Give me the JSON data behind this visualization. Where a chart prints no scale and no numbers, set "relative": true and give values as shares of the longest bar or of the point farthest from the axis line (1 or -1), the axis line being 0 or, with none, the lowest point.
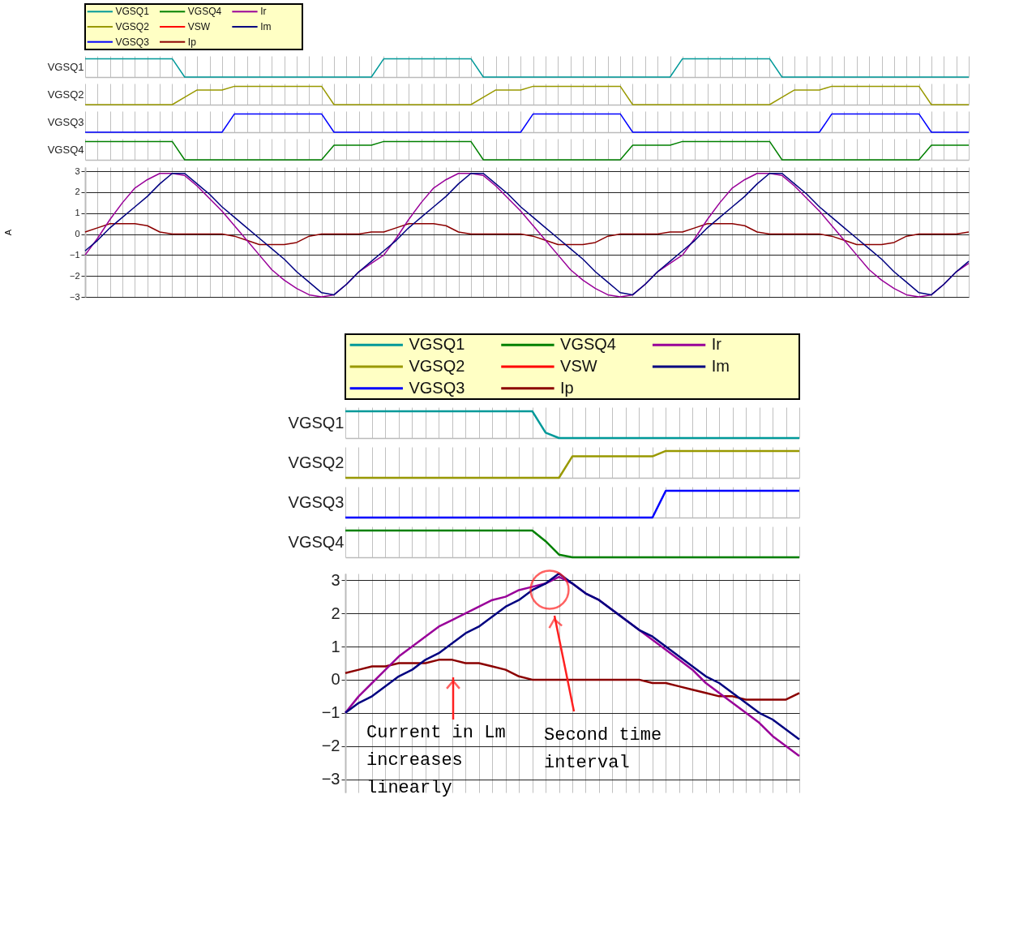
{
  "chart_data": [
    {
      "type": "line",
      "ylabel": "VGSQ1",
      "relative": true,
      "grid": "x",
      "categories": [
        null,
        null,
        null,
        null,
        null,
        null,
        null,
        null,
        null,
        null,
        null,
        null,
        null,
        null,
        null,
        null,
        null,
        null,
        null,
        null,
        null,
        null,
        null,
        null,
        null,
        null,
        null,
        null,
        null,
        null,
        null,
        null,
        null,
        null,
        null,
        null,
        null,
        null,
        null,
        null,
        null,
        null,
        null,
        null,
        null,
        null,
        null,
        null,
        null,
        null,
        null,
        null,
        null,
        null,
        null,
        null,
        null,
        null,
        null,
        null,
        null,
        null,
        null,
        null,
        null,
        null,
        null,
        null,
        null,
        null,
        null,
        null
      ],
      "series": [
        {
          "name": "VGSQ1",
          "color": "#009999",
          "values": [
            1,
            1,
            1,
            1,
            1,
            1,
            1,
            1,
            0,
            0,
            0,
            0,
            0,
            0,
            0,
            0,
            0,
            0,
            0,
            0,
            0,
            0,
            0,
            0,
            1,
            1,
            1,
            1,
            1,
            1,
            1,
            1,
            0,
            0,
            0,
            0,
            0,
            0,
            0,
            0,
            0,
            0,
            0,
            0,
            0,
            0,
            0,
            0,
            1,
            1,
            1,
            1,
            1,
            1,
            1,
            1,
            0,
            0,
            0,
            0,
            0,
            0,
            0,
            0,
            0,
            0,
            0,
            0,
            0,
            0,
            0,
            0
          ]
        }
      ]
    },
    {
      "type": "line",
      "ylabel": "VGSQ2",
      "relative": true,
      "grid": "x",
      "categories": [
        null,
        null,
        null,
        null,
        null,
        null,
        null,
        null,
        null,
        null,
        null,
        null,
        null,
        null,
        null,
        null,
        null,
        null,
        null,
        null,
        null,
        null,
        null,
        null,
        null,
        null,
        null,
        null,
        null,
        null,
        null,
        null,
        null,
        null,
        null,
        null,
        null,
        null,
        null,
        null,
        null,
        null,
        null,
        null,
        null,
        null,
        null,
        null,
        null,
        null,
        null,
        null,
        null,
        null,
        null,
        null,
        null,
        null,
        null,
        null,
        null,
        null,
        null,
        null,
        null,
        null,
        null,
        null,
        null,
        null,
        null,
        null
      ],
      "series": [
        {
          "name": "VGSQ2",
          "color": "#999900",
          "values": [
            0,
            0,
            0,
            0,
            0,
            0,
            0,
            0,
            0.4,
            0.8,
            0.8,
            0.8,
            1,
            1,
            1,
            1,
            1,
            1,
            1,
            1,
            0,
            0,
            0,
            0,
            0,
            0,
            0,
            0,
            0,
            0,
            0,
            0,
            0.4,
            0.8,
            0.8,
            0.8,
            1,
            1,
            1,
            1,
            1,
            1,
            1,
            1,
            0,
            0,
            0,
            0,
            0,
            0,
            0,
            0,
            0,
            0,
            0,
            0,
            0.4,
            0.8,
            0.8,
            0.8,
            1,
            1,
            1,
            1,
            1,
            1,
            1,
            1,
            0,
            0,
            0,
            0
          ]
        }
      ]
    },
    {
      "type": "line",
      "ylabel": "VGSQ3",
      "relative": true,
      "grid": "x",
      "categories": [
        null,
        null,
        null,
        null,
        null,
        null,
        null,
        null,
        null,
        null,
        null,
        null,
        null,
        null,
        null,
        null,
        null,
        null,
        null,
        null,
        null,
        null,
        null,
        null,
        null,
        null,
        null,
        null,
        null,
        null,
        null,
        null,
        null,
        null,
        null,
        null,
        null,
        null,
        null,
        null,
        null,
        null,
        null,
        null,
        null,
        null,
        null,
        null,
        null,
        null,
        null,
        null,
        null,
        null,
        null,
        null,
        null,
        null,
        null,
        null,
        null,
        null,
        null,
        null,
        null,
        null,
        null,
        null,
        null,
        null,
        null,
        null
      ],
      "series": [
        {
          "name": "VGSQ3",
          "color": "#0000ff",
          "values": [
            0,
            0,
            0,
            0,
            0,
            0,
            0,
            0,
            0,
            0,
            0,
            0,
            1,
            1,
            1,
            1,
            1,
            1,
            1,
            1,
            0,
            0,
            0,
            0,
            0,
            0,
            0,
            0,
            0,
            0,
            0,
            0,
            0,
            0,
            0,
            0,
            1,
            1,
            1,
            1,
            1,
            1,
            1,
            1,
            0,
            0,
            0,
            0,
            0,
            0,
            0,
            0,
            0,
            0,
            0,
            0,
            0,
            0,
            0,
            0,
            1,
            1,
            1,
            1,
            1,
            1,
            1,
            1,
            0,
            0,
            0,
            0
          ]
        }
      ]
    },
    {
      "type": "line",
      "ylabel": "VGSQ4",
      "relative": true,
      "grid": "x",
      "categories": [
        null,
        null,
        null,
        null,
        null,
        null,
        null,
        null,
        null,
        null,
        null,
        null,
        null,
        null,
        null,
        null,
        null,
        null,
        null,
        null,
        null,
        null,
        null,
        null,
        null,
        null,
        null,
        null,
        null,
        null,
        null,
        null,
        null,
        null,
        null,
        null,
        null,
        null,
        null,
        null,
        null,
        null,
        null,
        null,
        null,
        null,
        null,
        null,
        null,
        null,
        null,
        null,
        null,
        null,
        null,
        null,
        null,
        null,
        null,
        null,
        null,
        null,
        null,
        null,
        null,
        null,
        null,
        null,
        null,
        null,
        null,
        null
      ],
      "series": [
        {
          "name": "VGSQ4",
          "color": "#008000",
          "values": [
            1,
            1,
            1,
            1,
            1,
            1,
            1,
            1,
            0,
            0,
            0,
            0,
            0,
            0,
            0,
            0,
            0,
            0,
            0,
            0,
            0.8,
            0.8,
            0.8,
            0.8,
            1,
            1,
            1,
            1,
            1,
            1,
            1,
            1,
            0,
            0,
            0,
            0,
            0,
            0,
            0,
            0,
            0,
            0,
            0,
            0,
            0.8,
            0.8,
            0.8,
            0.8,
            1,
            1,
            1,
            1,
            1,
            1,
            1,
            1,
            0,
            0,
            0,
            0,
            0,
            0,
            0,
            0,
            0,
            0,
            0,
            0,
            0.8,
            0.8,
            0.8,
            0.8
          ]
        }
      ]
    },
    {
      "type": "line",
      "ylabel": "A",
      "grid": true,
      "legend": "top",
      "ylim": [
        -3,
        3.2
      ],
      "yticks": [
        -3,
        -2,
        -1,
        0,
        1,
        2,
        3
      ],
      "categories": [
        null,
        null,
        null,
        null,
        null,
        null,
        null,
        null,
        null,
        null,
        null,
        null,
        null,
        null,
        null,
        null,
        null,
        null,
        null,
        null,
        null,
        null,
        null,
        null,
        null,
        null,
        null,
        null,
        null,
        null,
        null,
        null,
        null,
        null,
        null,
        null,
        null,
        null,
        null,
        null,
        null,
        null,
        null,
        null,
        null,
        null,
        null,
        null,
        null,
        null,
        null,
        null,
        null,
        null,
        null,
        null,
        null,
        null,
        null,
        null,
        null,
        null,
        null,
        null,
        null,
        null,
        null,
        null,
        null,
        null,
        null,
        null
      ],
      "series": [
        {
          "name": "VSW",
          "color": "#ff0000",
          "values": [
            null,
            null,
            null,
            null,
            null,
            null,
            null,
            null,
            null,
            null,
            null,
            null,
            null,
            null,
            null,
            null,
            null,
            null,
            null,
            null,
            null,
            null,
            null,
            null,
            null,
            null,
            null,
            null,
            null,
            null,
            null,
            null,
            null,
            null,
            null,
            null,
            null,
            null,
            null,
            null,
            null,
            null,
            null,
            null,
            null,
            null,
            null,
            null,
            null,
            null,
            null,
            null,
            null,
            null,
            null,
            null,
            null,
            null,
            null,
            null,
            null,
            null,
            null,
            null,
            null,
            null,
            null,
            null,
            null,
            null,
            null,
            null
          ]
        },
        {
          "name": "Ip",
          "color": "#8b0000",
          "values": [
            0.1,
            0.3,
            0.5,
            0.5,
            0.5,
            0.4,
            0.1,
            0,
            0,
            0,
            0,
            0,
            -0.1,
            -0.3,
            -0.5,
            -0.5,
            -0.5,
            -0.4,
            -0.1,
            0,
            0,
            0,
            0,
            0.1,
            0.1,
            0.3,
            0.5,
            0.5,
            0.5,
            0.4,
            0.1,
            0,
            0,
            0,
            0,
            0,
            -0.1,
            -0.3,
            -0.5,
            -0.5,
            -0.5,
            -0.4,
            -0.1,
            0,
            0,
            0,
            0,
            0.1,
            0.1,
            0.3,
            0.5,
            0.5,
            0.5,
            0.4,
            0.1,
            0,
            0,
            0,
            0,
            0,
            -0.1,
            -0.3,
            -0.5,
            -0.5,
            -0.5,
            -0.4,
            -0.1,
            0,
            0,
            0,
            0,
            0.1
          ]
        },
        {
          "name": "Ir",
          "color": "#990099",
          "values": [
            -1.0,
            -0.2,
            0.7,
            1.5,
            2.2,
            2.6,
            2.9,
            2.9,
            2.8,
            2.3,
            1.7,
            1.1,
            0.4,
            -0.3,
            -1.0,
            -1.7,
            -2.2,
            -2.6,
            -2.9,
            -3.0,
            -2.9,
            -2.4,
            -1.8,
            -1.4,
            -1.0,
            -0.2,
            0.7,
            1.5,
            2.2,
            2.6,
            2.9,
            2.9,
            2.8,
            2.3,
            1.7,
            1.1,
            0.4,
            -0.3,
            -1.0,
            -1.7,
            -2.2,
            -2.6,
            -2.9,
            -3.0,
            -2.9,
            -2.4,
            -1.8,
            -1.4,
            -1.0,
            -0.2,
            0.7,
            1.5,
            2.2,
            2.6,
            2.9,
            2.9,
            2.8,
            2.3,
            1.7,
            1.1,
            0.4,
            -0.3,
            -1.0,
            -1.7,
            -2.2,
            -2.6,
            -2.9,
            -3.0,
            -2.9,
            -2.4,
            -1.8,
            -1.4
          ]
        },
        {
          "name": "Im",
          "color": "#000080",
          "values": [
            -0.8,
            -0.3,
            0.3,
            0.8,
            1.3,
            1.8,
            2.4,
            2.9,
            2.9,
            2.4,
            1.9,
            1.3,
            0.8,
            0.3,
            -0.2,
            -0.7,
            -1.2,
            -1.8,
            -2.3,
            -2.8,
            -2.9,
            -2.4,
            -1.8,
            -1.3,
            -0.8,
            -0.3,
            0.3,
            0.8,
            1.3,
            1.8,
            2.4,
            2.9,
            2.9,
            2.4,
            1.9,
            1.3,
            0.8,
            0.3,
            -0.2,
            -0.7,
            -1.2,
            -1.8,
            -2.3,
            -2.8,
            -2.9,
            -2.4,
            -1.8,
            -1.3,
            -0.8,
            -0.3,
            0.3,
            0.8,
            1.3,
            1.8,
            2.4,
            2.9,
            2.9,
            2.4,
            1.9,
            1.3,
            0.8,
            0.3,
            -0.2,
            -0.7,
            -1.2,
            -1.8,
            -2.3,
            -2.8,
            -2.9,
            -2.4,
            -1.8,
            -1.3
          ]
        }
      ]
    },
    {
      "type": "line",
      "ylabel": "VGSQ1",
      "relative": true,
      "grid": "x",
      "categories": [
        null,
        null,
        null,
        null,
        null,
        null,
        null,
        null,
        null,
        null,
        null,
        null,
        null,
        null,
        null,
        null,
        null,
        null,
        null,
        null,
        null,
        null,
        null,
        null,
        null,
        null,
        null,
        null,
        null,
        null,
        null,
        null,
        null,
        null,
        null
      ],
      "series": [
        {
          "name": "VGSQ1",
          "color": "#009999",
          "values": [
            1,
            1,
            1,
            1,
            1,
            1,
            1,
            1,
            1,
            1,
            1,
            1,
            1,
            1,
            1,
            0.2,
            0,
            0,
            0,
            0,
            0,
            0,
            0,
            0,
            0,
            0,
            0,
            0,
            0,
            0,
            0,
            0,
            0,
            0,
            0
          ]
        }
      ]
    },
    {
      "type": "line",
      "ylabel": "VGSQ2",
      "relative": true,
      "grid": "x",
      "categories": [
        null,
        null,
        null,
        null,
        null,
        null,
        null,
        null,
        null,
        null,
        null,
        null,
        null,
        null,
        null,
        null,
        null,
        null,
        null,
        null,
        null,
        null,
        null,
        null,
        null,
        null,
        null,
        null,
        null,
        null,
        null,
        null,
        null,
        null,
        null
      ],
      "series": [
        {
          "name": "VGSQ2",
          "color": "#999900",
          "values": [
            0,
            0,
            0,
            0,
            0,
            0,
            0,
            0,
            0,
            0,
            0,
            0,
            0,
            0,
            0,
            0,
            0,
            0.8,
            0.8,
            0.8,
            0.8,
            0.8,
            0.8,
            0.8,
            1,
            1,
            1,
            1,
            1,
            1,
            1,
            1,
            1,
            1,
            1
          ]
        }
      ]
    },
    {
      "type": "line",
      "ylabel": "VGSQ3",
      "relative": true,
      "grid": "x",
      "categories": [
        null,
        null,
        null,
        null,
        null,
        null,
        null,
        null,
        null,
        null,
        null,
        null,
        null,
        null,
        null,
        null,
        null,
        null,
        null,
        null,
        null,
        null,
        null,
        null,
        null,
        null,
        null,
        null,
        null,
        null,
        null,
        null,
        null,
        null,
        null
      ],
      "series": [
        {
          "name": "VGSQ3",
          "color": "#0000ff",
          "values": [
            0,
            0,
            0,
            0,
            0,
            0,
            0,
            0,
            0,
            0,
            0,
            0,
            0,
            0,
            0,
            0,
            0,
            0,
            0,
            0,
            0,
            0,
            0,
            0,
            1,
            1,
            1,
            1,
            1,
            1,
            1,
            1,
            1,
            1,
            1
          ]
        }
      ]
    },
    {
      "type": "line",
      "ylabel": "VGSQ4",
      "relative": true,
      "grid": "x",
      "categories": [
        null,
        null,
        null,
        null,
        null,
        null,
        null,
        null,
        null,
        null,
        null,
        null,
        null,
        null,
        null,
        null,
        null,
        null,
        null,
        null,
        null,
        null,
        null,
        null,
        null,
        null,
        null,
        null,
        null,
        null,
        null,
        null,
        null,
        null,
        null
      ],
      "series": [
        {
          "name": "VGSQ4",
          "color": "#008000",
          "values": [
            1,
            1,
            1,
            1,
            1,
            1,
            1,
            1,
            1,
            1,
            1,
            1,
            1,
            1,
            1,
            0.6,
            0.1,
            0,
            0,
            0,
            0,
            0,
            0,
            0,
            0,
            0,
            0,
            0,
            0,
            0,
            0,
            0,
            0,
            0,
            0
          ]
        }
      ]
    },
    {
      "type": "line",
      "grid": true,
      "legend": "top",
      "ylim": [
        -3.4,
        3.2
      ],
      "yticks": [
        -3,
        -2,
        -1,
        0,
        1,
        2,
        3
      ],
      "annotations": [
        "Current in Lm\nincreases\nlinearly",
        "Second time\ninterval"
      ],
      "categories": [
        null,
        null,
        null,
        null,
        null,
        null,
        null,
        null,
        null,
        null,
        null,
        null,
        null,
        null,
        null,
        null,
        null,
        null,
        null,
        null,
        null,
        null,
        null,
        null,
        null,
        null,
        null,
        null,
        null,
        null,
        null,
        null,
        null,
        null,
        null
      ],
      "series": [
        {
          "name": "VSW",
          "color": "#ff0000",
          "values": [
            null,
            null,
            null,
            null,
            null,
            null,
            null,
            null,
            null,
            null,
            null,
            null,
            null,
            null,
            null,
            null,
            null,
            null,
            null,
            null,
            null,
            null,
            null,
            null,
            null,
            null,
            null,
            null,
            null,
            null,
            null,
            null,
            null,
            null,
            null
          ]
        },
        {
          "name": "Ip",
          "color": "#8b0000",
          "values": [
            0.2,
            0.3,
            0.4,
            0.4,
            0.5,
            0.5,
            0.5,
            0.6,
            0.6,
            0.5,
            0.5,
            0.4,
            0.3,
            0.1,
            0,
            0,
            0,
            0,
            0,
            0,
            0,
            0,
            0,
            -0.1,
            -0.1,
            -0.2,
            -0.3,
            -0.4,
            -0.5,
            -0.5,
            -0.6,
            -0.6,
            -0.6,
            -0.6,
            -0.4
          ]
        },
        {
          "name": "Ir",
          "color": "#990099",
          "values": [
            -1.0,
            -0.5,
            -0.1,
            0.3,
            0.7,
            1.0,
            1.3,
            1.6,
            1.8,
            2.0,
            2.2,
            2.4,
            2.5,
            2.7,
            2.8,
            2.9,
            3.1,
            2.9,
            2.6,
            2.4,
            2.1,
            1.8,
            1.5,
            1.2,
            0.9,
            0.6,
            0.3,
            -0.1,
            -0.4,
            -0.7,
            -1.0,
            -1.3,
            -1.7,
            -2.0,
            -2.3
          ]
        },
        {
          "name": "Im",
          "color": "#000080",
          "values": [
            -1.0,
            -0.7,
            -0.5,
            -0.2,
            0.1,
            0.3,
            0.6,
            0.8,
            1.1,
            1.4,
            1.6,
            1.9,
            2.2,
            2.4,
            2.7,
            2.9,
            3.2,
            2.9,
            2.6,
            2.4,
            2.1,
            1.8,
            1.5,
            1.3,
            1.0,
            0.7,
            0.4,
            0.1,
            -0.1,
            -0.4,
            -0.7,
            -1.0,
            -1.2,
            -1.5,
            -1.8
          ]
        }
      ]
    }
  ]
}
